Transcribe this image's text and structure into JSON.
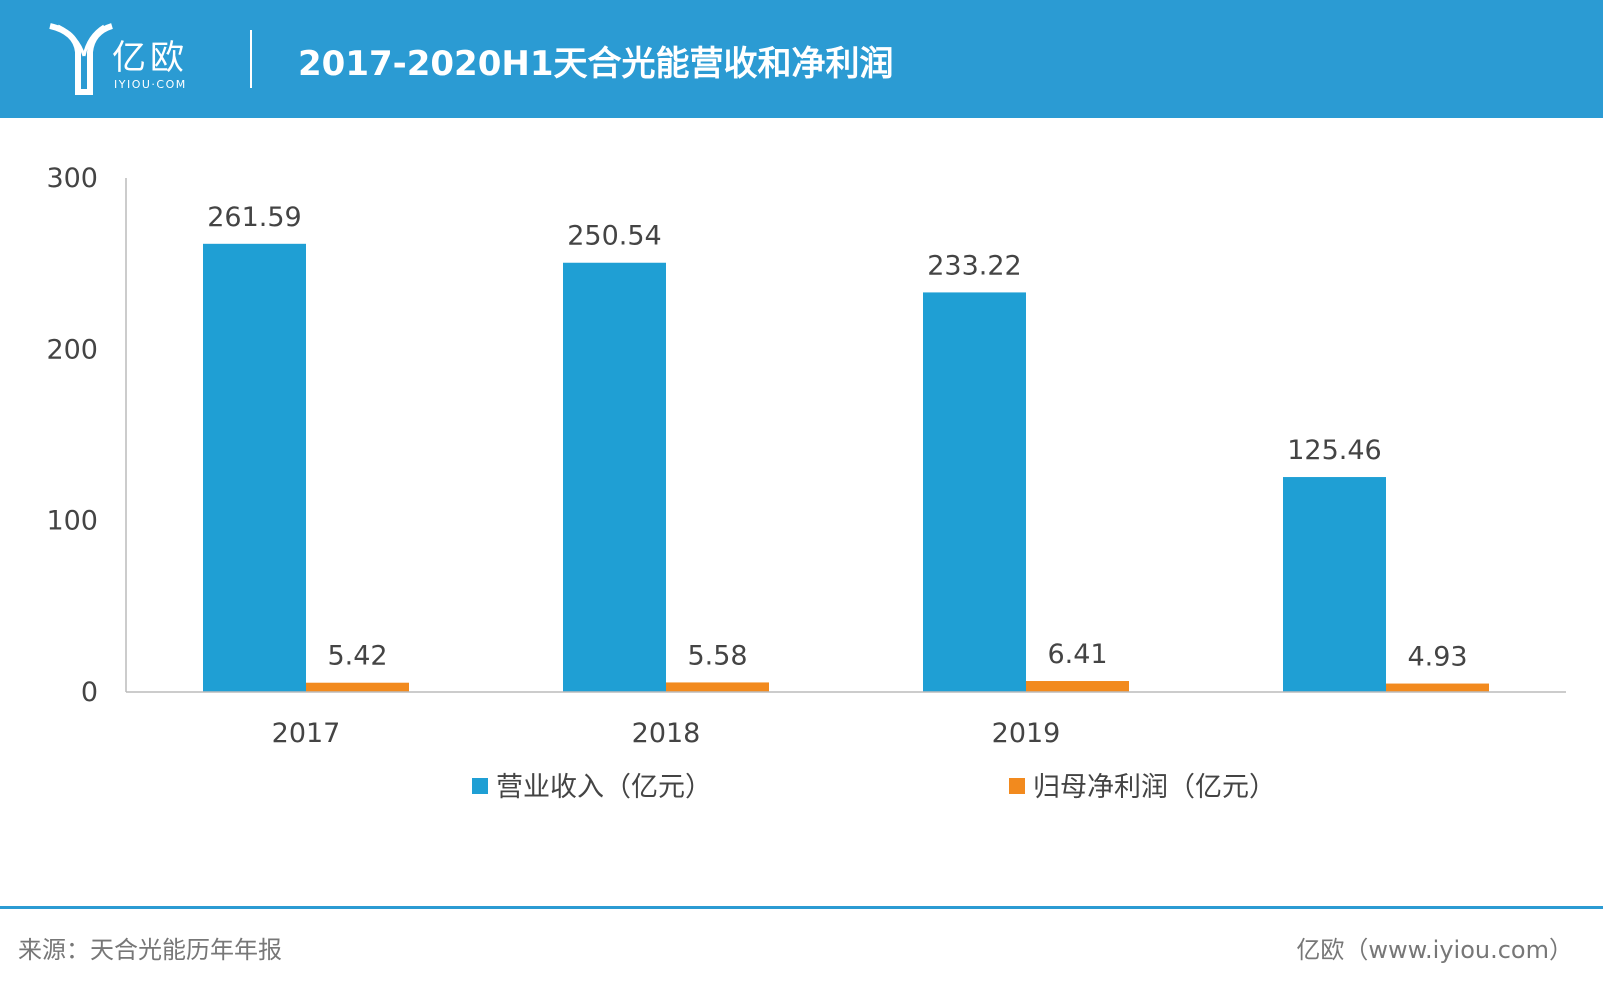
{
  "header": {
    "logo_cn": "亿欧",
    "logo_en": "IYIOU·COM",
    "title": "2017-2020H1天合光能营收和净利润"
  },
  "chart_data": {
    "type": "bar",
    "title": "2017-2020H1天合光能营收和净利润",
    "categories": [
      "2017",
      "2018",
      "2019",
      ""
    ],
    "series": [
      {
        "name": "营业收入（亿元）",
        "values": [
          261.59,
          250.54,
          233.22,
          125.46
        ],
        "color": "#1f9fd4"
      },
      {
        "name": "归母净利润（亿元）",
        "values": [
          5.42,
          5.58,
          6.41,
          4.93
        ],
        "color": "#f28a1e"
      }
    ],
    "data_labels": [
      [
        "261.59",
        "250.54",
        "233.22",
        "125.46"
      ],
      [
        "5.42",
        "5.58",
        "6.41",
        "4.93"
      ]
    ],
    "ylim": [
      0,
      300
    ],
    "yticks": [
      0,
      100,
      200,
      300
    ],
    "ytick_labels": [
      "0",
      "100",
      "200",
      "300"
    ],
    "grid": false,
    "legend_position": "bottom-center"
  },
  "footer": {
    "source": "来源：天合光能历年年报",
    "credit": "亿欧（www.iyiou.com）"
  }
}
